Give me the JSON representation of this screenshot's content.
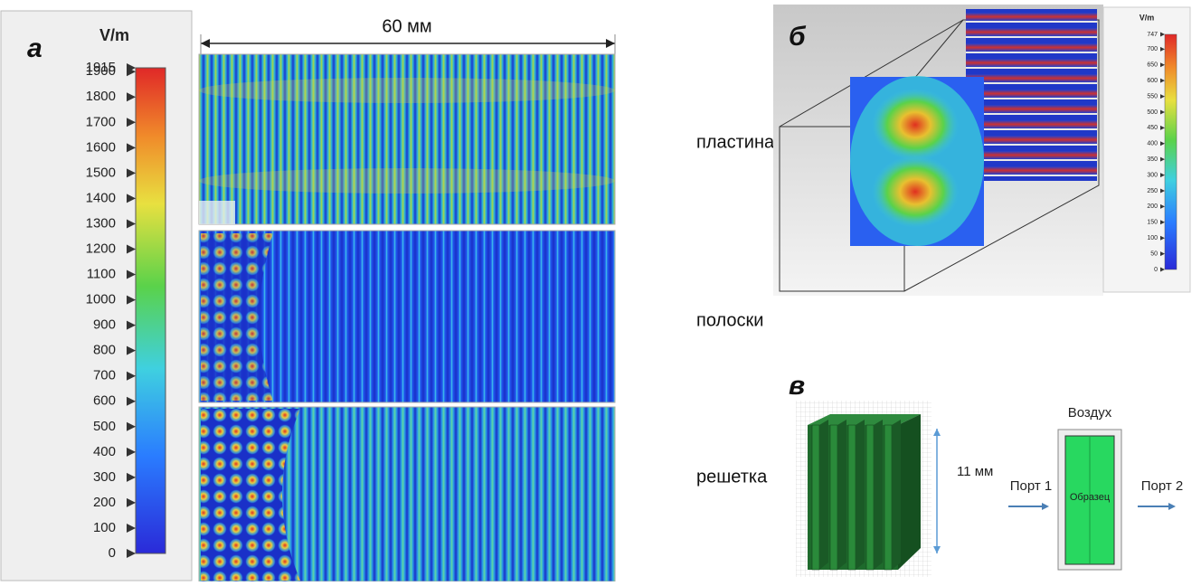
{
  "panel_a": {
    "label": "а",
    "colorbar": {
      "unit": "V/m",
      "ticks": [
        0,
        100,
        200,
        300,
        400,
        500,
        600,
        700,
        800,
        900,
        1000,
        1100,
        1200,
        1300,
        1400,
        1500,
        1600,
        1700,
        1800,
        1900,
        1915
      ]
    },
    "width_label": "60 мм",
    "rows": [
      "пластина",
      "полоски",
      "решетка"
    ]
  },
  "panel_b": {
    "label": "б",
    "colorbar": {
      "unit": "V/m",
      "ticks": [
        0,
        50,
        100,
        150,
        200,
        250,
        300,
        350,
        400,
        450,
        500,
        550,
        600,
        650,
        700,
        747
      ]
    }
  },
  "panel_c": {
    "label": "в",
    "height_label": "11 мм",
    "top_label": "Воздух",
    "sample_label": "Образец",
    "port_in": "Порт 1",
    "port_out": "Порт 2"
  }
}
